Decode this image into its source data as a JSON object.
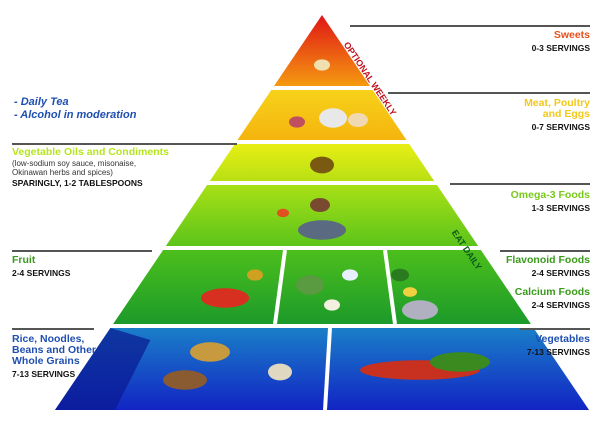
{
  "left": {
    "notes": [
      "- Daily Tea",
      "- Alcohol in moderation"
    ],
    "oils": {
      "title": "Vegetable Oils and Condiments",
      "detail": [
        "(low-sodium soy sauce, misonaise,",
        "Okinawan herbs and spices)"
      ],
      "servings": "SPARINGLY, 1-2 TABLESPOONS",
      "color": "#b5e61d"
    },
    "fruit": {
      "title": "Fruit",
      "servings": "2-4 SERVINGS",
      "color": "#3a9b1a"
    },
    "grains": {
      "title": [
        "Rice, Noodles,",
        "Beans and Other",
        "Whole Grains"
      ],
      "servings": "7-13 SERVINGS",
      "color": "#1f4fb0"
    }
  },
  "right": {
    "sweets": {
      "title": "Sweets",
      "servings": "0-3 SERVINGS",
      "color": "#e8501e"
    },
    "meat": {
      "title": [
        "Meat, Poultry",
        "and Eggs"
      ],
      "servings": "0-7 SERVINGS",
      "color": "#f2c81a"
    },
    "omega": {
      "title": "Omega-3 Foods",
      "servings": "1-3 SERVINGS",
      "color": "#7ac81d"
    },
    "flavonoid": {
      "title": "Flavonoid Foods",
      "servings": "2-4 SERVINGS",
      "color": "#3a9b1a"
    },
    "calcium": {
      "title": "Calcium Foods",
      "servings": "2-4 SERVINGS",
      "color": "#3a9b1a"
    },
    "vegetables": {
      "title": "Vegetables",
      "servings": "7-13 SERVINGS",
      "color": "#1f4fb0"
    }
  },
  "pyramid_labels": {
    "optional": "OPTIONAL WEEKLY",
    "daily": "EAT DAILY"
  },
  "tiers": [
    {
      "name": "sweets",
      "top": "#e01515",
      "bottom": "#f59a10"
    },
    {
      "name": "meat",
      "top": "#f7d21a",
      "bottom": "#f5b40e"
    },
    {
      "name": "oils",
      "top": "#e8ee14",
      "bottom": "#b8e014"
    },
    {
      "name": "omega",
      "top": "#a8e016",
      "bottom": "#5cc41a"
    },
    {
      "name": "fruit",
      "top": "#4cbf1c",
      "bottom": "#1c9a2a"
    },
    {
      "name": "grains",
      "top": "#1a7fc8",
      "bottom": "#1224c4"
    }
  ]
}
